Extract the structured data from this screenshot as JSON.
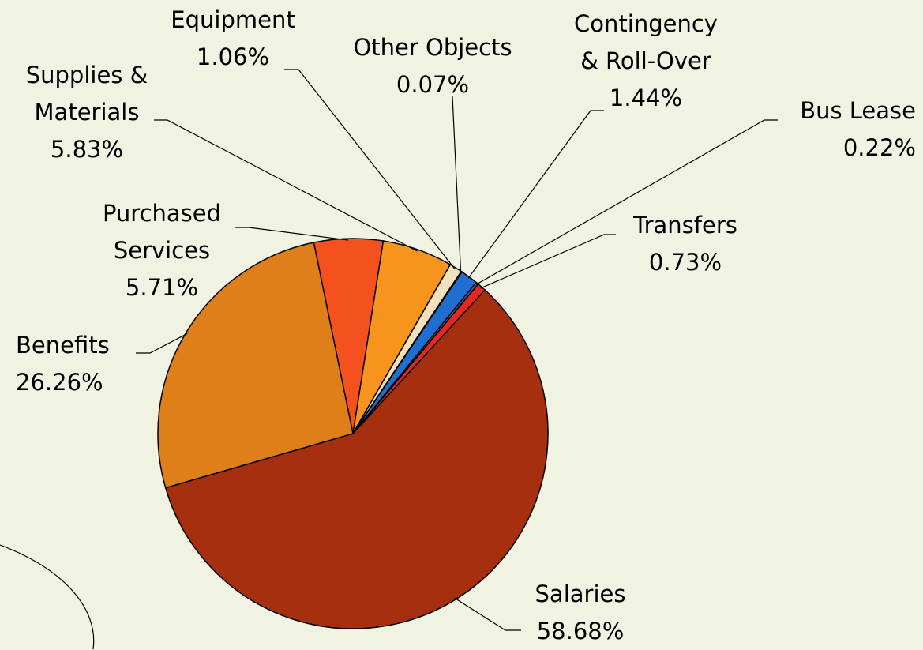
{
  "chart_data": {
    "type": "pie",
    "categories": [
      "Purchased Services",
      "Supplies & Materials",
      "Equipment",
      "Other Objects",
      "Contingency & Roll-Over",
      "Bus Lease",
      "Transfers",
      "Salaries",
      "Benefits"
    ],
    "values": [
      5.71,
      5.83,
      1.06,
      0.07,
      1.44,
      0.22,
      0.73,
      58.68,
      26.26
    ],
    "value_labels": [
      "5.71%",
      "5.83%",
      "1.06%",
      "0.07%",
      "1.44%",
      "0.22%",
      "0.73%",
      "58.68%",
      "26.26%"
    ],
    "colors": [
      "#f4511e",
      "#f7941d",
      "#f3e1bd",
      "#8c8c8c",
      "#1f6fd1",
      "#2f5fa8",
      "#e8261c",
      "#a52f0e",
      "#de7f1a"
    ]
  }
}
